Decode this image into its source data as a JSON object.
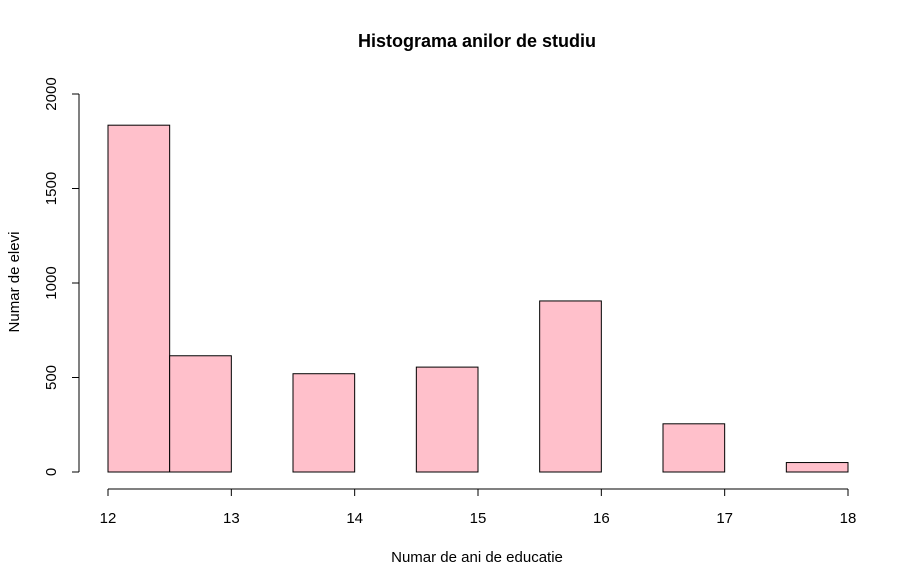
{
  "chart_data": {
    "type": "bar",
    "title": "Histograma anilor de studiu",
    "xlabel": "Numar de ani de educatie",
    "ylabel": "Numar de elevi",
    "bins": [
      {
        "x0": 12.0,
        "x1": 12.5,
        "value": 1835
      },
      {
        "x0": 12.5,
        "x1": 13.0,
        "value": 615
      },
      {
        "x0": 13.0,
        "x1": 13.5,
        "value": 0
      },
      {
        "x0": 13.5,
        "x1": 14.0,
        "value": 520
      },
      {
        "x0": 14.0,
        "x1": 14.5,
        "value": 0
      },
      {
        "x0": 14.5,
        "x1": 15.0,
        "value": 555
      },
      {
        "x0": 15.0,
        "x1": 15.5,
        "value": 0
      },
      {
        "x0": 15.5,
        "x1": 16.0,
        "value": 905
      },
      {
        "x0": 16.0,
        "x1": 16.5,
        "value": 0
      },
      {
        "x0": 16.5,
        "x1": 17.0,
        "value": 255
      },
      {
        "x0": 17.0,
        "x1": 17.5,
        "value": 0
      },
      {
        "x0": 17.5,
        "x1": 18.0,
        "value": 50
      }
    ],
    "xlim": [
      12,
      18
    ],
    "ylim": [
      0,
      2000
    ],
    "x_ticks": [
      {
        "value": 12,
        "label": "12"
      },
      {
        "value": 13,
        "label": "13"
      },
      {
        "value": 14,
        "label": "14"
      },
      {
        "value": 15,
        "label": "15"
      },
      {
        "value": 16,
        "label": "16"
      },
      {
        "value": 17,
        "label": "17"
      },
      {
        "value": 18,
        "label": "18"
      }
    ],
    "y_ticks": [
      {
        "value": 0,
        "label": "0"
      },
      {
        "value": 500,
        "label": "500"
      },
      {
        "value": 1000,
        "label": "1000"
      },
      {
        "value": 1500,
        "label": "1500"
      },
      {
        "value": 2000,
        "label": "2000"
      }
    ],
    "bar_fill": "#ffc0cb",
    "bar_stroke": "#000000",
    "grid": false
  }
}
